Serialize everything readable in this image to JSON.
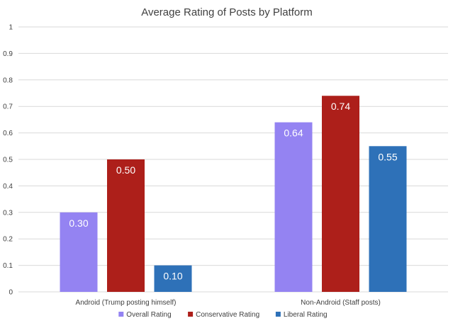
{
  "chart_data": {
    "type": "bar",
    "title": "Average Rating of Posts by Platform",
    "xlabel": "",
    "ylabel": "",
    "ylim": [
      0,
      1
    ],
    "yticks": [
      "0",
      "0.1",
      "0.2",
      "0.3",
      "0.4",
      "0.5",
      "0.6",
      "0.7",
      "0.8",
      "0.9",
      "1"
    ],
    "grid": true,
    "legend_position": "bottom",
    "categories": [
      "Android (Trump posting himself)",
      "Non-Android (Staff posts)"
    ],
    "series": [
      {
        "name": "Overall Rating",
        "color": "#9483f2",
        "values": [
          0.3,
          0.64
        ],
        "labels": [
          "0.30",
          "0.64"
        ]
      },
      {
        "name": "Conservative Rating",
        "color": "#ad1f1a",
        "values": [
          0.5,
          0.74
        ],
        "labels": [
          "0.50",
          "0.74"
        ]
      },
      {
        "name": "Liberal Rating",
        "color": "#2e71b8",
        "values": [
          0.1,
          0.55
        ],
        "labels": [
          "0.10",
          "0.55"
        ]
      }
    ]
  }
}
